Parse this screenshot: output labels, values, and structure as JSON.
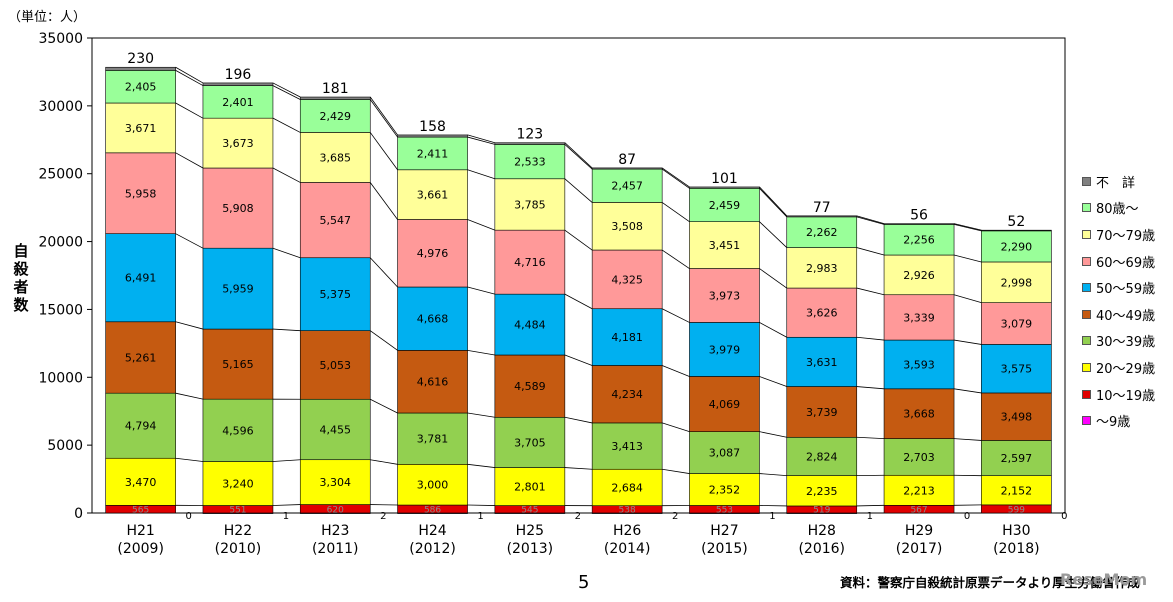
{
  "unit_label": "（単位：人）",
  "ylabel": "自殺者数",
  "page_number": "5",
  "source": "資料：警察庁自殺統計原票データより厚生労働省作成",
  "watermark": "ReseMom",
  "chart_data": {
    "type": "bar",
    "stacked": true,
    "title": "",
    "ylabel": "自殺者数",
    "unit": "（単位：人）",
    "ylim": [
      0,
      35000
    ],
    "yticks": [
      0,
      5000,
      10000,
      15000,
      20000,
      25000,
      30000,
      35000
    ],
    "categories": [
      {
        "year": "H21",
        "western": "(2009)"
      },
      {
        "year": "H22",
        "western": "(2010)"
      },
      {
        "year": "H23",
        "western": "(2011)"
      },
      {
        "year": "H24",
        "western": "(2012)"
      },
      {
        "year": "H25",
        "western": "(2013)"
      },
      {
        "year": "H26",
        "western": "(2014)"
      },
      {
        "year": "H27",
        "western": "(2015)"
      },
      {
        "year": "H28",
        "western": "(2016)"
      },
      {
        "year": "H29",
        "western": "(2017)"
      },
      {
        "year": "H30",
        "western": "(2018)"
      }
    ],
    "series": [
      {
        "name": "～9歳",
        "color": "#ff00ff",
        "values": [
          0,
          1,
          2,
          1,
          2,
          2,
          1,
          1,
          0,
          0
        ]
      },
      {
        "name": "10～19歳",
        "color": "#e00000",
        "values": [
          565,
          551,
          620,
          586,
          545,
          538,
          553,
          519,
          567,
          599
        ]
      },
      {
        "name": "20～29歳",
        "color": "#ffff00",
        "values": [
          3470,
          3240,
          3304,
          3000,
          2801,
          2684,
          2352,
          2235,
          2213,
          2152
        ]
      },
      {
        "name": "30～39歳",
        "color": "#92d050",
        "values": [
          4794,
          4596,
          4455,
          3781,
          3705,
          3413,
          3087,
          2824,
          2703,
          2597
        ]
      },
      {
        "name": "40～49歳",
        "color": "#c55a11",
        "values": [
          5261,
          5165,
          5053,
          4616,
          4589,
          4234,
          4069,
          3739,
          3668,
          3498
        ]
      },
      {
        "name": "50～59歳",
        "color": "#00b0f0",
        "values": [
          6491,
          5959,
          5375,
          4668,
          4484,
          4181,
          3979,
          3631,
          3593,
          3575
        ]
      },
      {
        "name": "60～69歳",
        "color": "#ff9999",
        "values": [
          5958,
          5908,
          5547,
          4976,
          4716,
          4325,
          3973,
          3626,
          3339,
          3079
        ]
      },
      {
        "name": "70～79歳",
        "color": "#ffff99",
        "values": [
          3671,
          3673,
          3685,
          3661,
          3785,
          3508,
          3451,
          2983,
          2926,
          2998
        ]
      },
      {
        "name": "80歳～",
        "color": "#99ff99",
        "values": [
          2405,
          2401,
          2429,
          2411,
          2533,
          2457,
          2459,
          2262,
          2256,
          2290
        ]
      },
      {
        "name": "不　詳",
        "color": "#808080",
        "values": [
          230,
          196,
          181,
          158,
          123,
          87,
          101,
          77,
          56,
          52
        ]
      }
    ],
    "legend_position": "right",
    "legend_order": [
      "不　詳",
      "80歳～",
      "70～79歳",
      "60～69歳",
      "50～59歳",
      "40～49歳",
      "30～39歳",
      "20～29歳",
      "10～19歳",
      "～9歳"
    ]
  }
}
